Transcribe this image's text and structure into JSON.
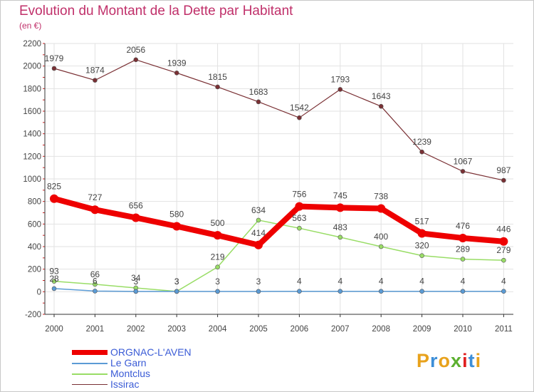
{
  "title": "Evolution du Montant de la Dette par Habitant",
  "subtitle": "(en €)",
  "logo": {
    "text": "Proxiti",
    "colors": [
      "#e8a21c",
      "#3c8ed8",
      "#e8a21c",
      "#5cb030",
      "#e02020",
      "#3c8ed8",
      "#e8a21c"
    ]
  },
  "chart_data": {
    "type": "line",
    "x": [
      "2000",
      "2001",
      "2002",
      "2003",
      "2004",
      "2005",
      "2006",
      "2007",
      "2008",
      "2009",
      "2010",
      "2011"
    ],
    "ylim": [
      -200,
      2200
    ],
    "yticks": [
      -200,
      0,
      200,
      400,
      600,
      800,
      1000,
      1200,
      1400,
      1600,
      1800,
      2000,
      2200
    ],
    "grid": true,
    "legend_position": "bottom-left",
    "series": [
      {
        "name": "ORGNAC-L'AVEN",
        "color": "#ee0000",
        "values": [
          825,
          727,
          656,
          580,
          500,
          414,
          756,
          745,
          738,
          517,
          476,
          446
        ]
      },
      {
        "name": "Le Garn",
        "color": "#5b9bd5",
        "values": [
          28,
          6,
          3,
          3,
          3,
          3,
          4,
          4,
          4,
          4,
          4,
          4
        ]
      },
      {
        "name": "Montclus",
        "color": "#99dd66",
        "values": [
          93,
          66,
          34,
          3,
          219,
          634,
          563,
          483,
          400,
          320,
          289,
          279
        ]
      },
      {
        "name": "Issirac",
        "color": "#7a3034",
        "values": [
          1979,
          1874,
          2056,
          1939,
          1815,
          1683,
          1542,
          1793,
          1643,
          1239,
          1067,
          987
        ]
      }
    ],
    "labels": {
      "ORGNAC-L'AVEN": [
        "825",
        "727",
        "656",
        "580",
        "500",
        "414",
        "756",
        "745",
        "738",
        "517",
        "476",
        "446"
      ],
      "Le Garn": [
        "28",
        "6",
        "3",
        "3",
        "3",
        "3",
        "4",
        "4",
        "4",
        "4",
        "4",
        "4"
      ],
      "Montclus": [
        "93",
        "66",
        "34",
        "3",
        "219",
        "634",
        "563",
        "483",
        "400",
        "320",
        "289",
        "279"
      ],
      "Issirac": [
        "1979",
        "1874",
        "2056",
        "1939",
        "1815",
        "1683",
        "1542",
        "1793",
        "1643",
        "1239",
        "1067",
        "987"
      ]
    }
  }
}
